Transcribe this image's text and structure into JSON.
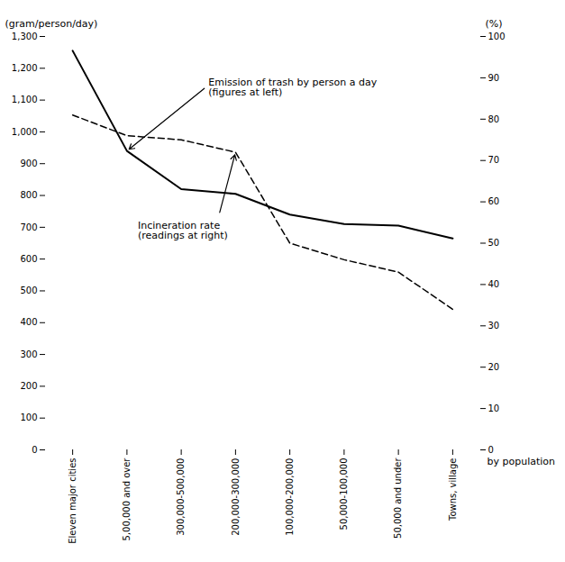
{
  "chart_data": {
    "type": "line",
    "categories": [
      "Eleven major cities",
      "5,00,000 and over",
      "300,000-500,000",
      "200,000-300,000",
      "100,000-200,000",
      "50,000-100,000",
      "50,000 and under",
      "Towns, village"
    ],
    "series": [
      {
        "color": "#000000",
        "line_style": "solid",
        "values": [
          1255,
          940,
          820,
          805,
          740,
          710,
          705,
          665
        ]
      },
      {
        "color": "#000000",
        "line_style": "dashed",
        "axis": "y2",
        "values": [
          81,
          76,
          75,
          72,
          50,
          46,
          43,
          34
        ]
      }
    ],
    "xlabel": "by population",
    "ylabel": "(gram/person/day)",
    "y2label": "(%)",
    "ylim": [
      0,
      1300
    ],
    "yticks": [
      0,
      100,
      200,
      300,
      400,
      500,
      600,
      700,
      800,
      900,
      {
        "value": 1000,
        "label": "1,000"
      },
      {
        "value": 1100,
        "label": "1,100"
      },
      {
        "value": 1200,
        "label": "1,200"
      },
      {
        "value": 1300,
        "label": "1,300"
      }
    ],
    "y2lim": [
      0,
      100
    ],
    "y2ticks": [
      0,
      10,
      20,
      30,
      40,
      50,
      60,
      70,
      80,
      90,
      100
    ],
    "annotations": [
      {
        "text": "Emission of trash by person a day\n(figures at left)",
        "category": "5,00,000 and over",
        "axis": "y"
      },
      {
        "text": "Incineration rate\n(readings at right)",
        "category": "200,000-300,000",
        "axis": "y2"
      }
    ],
    "grid": false
  }
}
